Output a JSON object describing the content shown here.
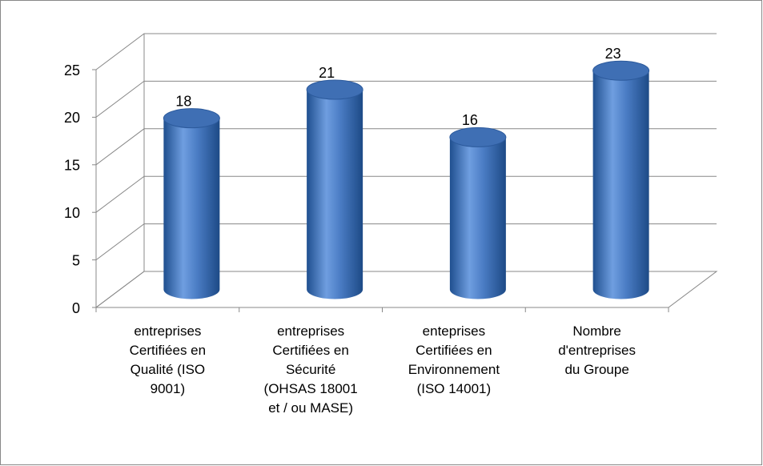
{
  "chart_data": {
    "type": "bar",
    "categories": [
      "entreprises\nCertifiées en\nQualité (ISO\n9001)",
      "entreprises\nCertifiées en\nSécurité\n(OHSAS 18001\net / ou MASE)",
      "enteprises\nCertifiées en\nEnvironnement\n(ISO 14001)",
      "Nombre\nd'entreprises\ndu Groupe"
    ],
    "values": [
      18,
      21,
      16,
      23
    ],
    "color": "#4a7cc4",
    "ylim": [
      0,
      25
    ],
    "yticks": [
      0,
      5,
      10,
      15,
      20,
      25
    ],
    "grid": true
  }
}
